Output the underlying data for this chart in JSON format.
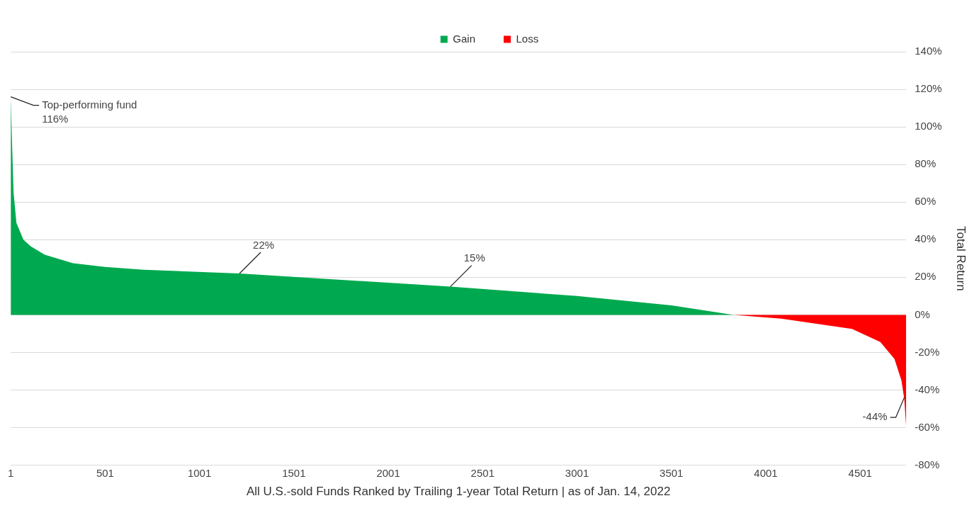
{
  "chart_data": {
    "type": "area",
    "xlabel": "All U.S.-sold Funds Ranked by Trailing 1-year Total Return | as of Jan. 14, 2022",
    "ylabel": "Total Return",
    "series": [
      {
        "name": "Gain",
        "color": "#00a94f",
        "x": [
          1,
          8,
          16,
          31,
          68,
          106,
          181,
          331,
          500,
          706,
          1213,
          2330,
          3001,
          3501,
          3832
        ],
        "values": [
          116,
          91,
          65,
          49,
          40,
          36.5,
          32,
          27.5,
          25.5,
          24,
          22,
          15,
          10,
          5,
          0
        ]
      },
      {
        "name": "Loss",
        "color": "#ff0000",
        "x": [
          3832,
          4083,
          4458,
          4608,
          4683,
          4720,
          4735,
          4745
        ],
        "values": [
          0,
          -2,
          -7.5,
          -14.5,
          -23.5,
          -35,
          -45,
          -60
        ]
      }
    ],
    "xlim": [
      1,
      4745
    ],
    "xticks": [
      1,
      501,
      1001,
      1501,
      2001,
      2501,
      3001,
      3501,
      4001,
      4501
    ],
    "ylim": [
      -80,
      140
    ],
    "yticks": [
      {
        "value": -80,
        "label": "-80%"
      },
      {
        "value": -60,
        "label": "-60%"
      },
      {
        "value": -40,
        "label": "-40%"
      },
      {
        "value": -20,
        "label": "-20%"
      },
      {
        "value": 0,
        "label": "0%"
      },
      {
        "value": 20,
        "label": "20%"
      },
      {
        "value": 40,
        "label": "40%"
      },
      {
        "value": 60,
        "label": "60%"
      },
      {
        "value": 80,
        "label": "80%"
      },
      {
        "value": 100,
        "label": "100%"
      },
      {
        "value": 120,
        "label": "120%"
      },
      {
        "value": 140,
        "label": "140%"
      }
    ],
    "annotations": [
      {
        "text": "Top-performing fund\n116%",
        "x": 1,
        "y": 116
      },
      {
        "text": "22%",
        "x": 1213,
        "y": 22
      },
      {
        "text": "15%",
        "x": 2330,
        "y": 15
      },
      {
        "text": "-44%",
        "x": 4735,
        "y": -44
      }
    ],
    "grid": "y",
    "legend": "top"
  }
}
